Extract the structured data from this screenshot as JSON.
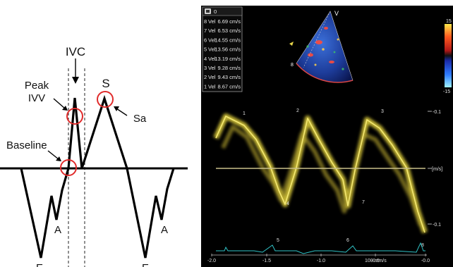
{
  "diagram": {
    "ivc_label": "IVC",
    "peak_label_line1": "Peak",
    "peak_label_line2": "IVV",
    "s_label": "S",
    "sa_label": "Sa",
    "baseline_label": "Baseline",
    "a_label_left": "A",
    "a_label_right": "A",
    "e_label_left": "E",
    "e_label_right": "E"
  },
  "echo": {
    "header_number": "0",
    "header_icon": "monitor-icon",
    "marker_label": "V",
    "sector_depth_label": "8",
    "measurements": [
      {
        "idx": "8",
        "name": "Vel",
        "value": "6.69 cm/s"
      },
      {
        "idx": "7",
        "name": "Vel",
        "value": "6.53 cm/s"
      },
      {
        "idx": "6",
        "name": "Vel",
        "value": "14.55 cm/s"
      },
      {
        "idx": "5",
        "name": "Vel",
        "value": "13.56 cm/s"
      },
      {
        "idx": "4",
        "name": "Vel",
        "value": "13.19 cm/s"
      },
      {
        "idx": "3",
        "name": "Vel",
        "value": "9.28 cm/s"
      },
      {
        "idx": "2",
        "name": "Vel",
        "value": "9.43 cm/s"
      },
      {
        "idx": "1",
        "name": "Vel",
        "value": "8.67 cm/s"
      }
    ],
    "scale_upper": "-0.1",
    "scale_unit": "[m/s]",
    "scale_lower": "-0.1",
    "colorbar_top": "15",
    "colorbar_bottom": "-15",
    "time_ticks": [
      "-2.0",
      "-1.5",
      "-1.0",
      "-0.5",
      "-0.0"
    ],
    "sweep_speed": "100 mm/s",
    "tissue_labels": [
      "1",
      "2",
      "3",
      "4",
      "5",
      "6",
      "7",
      "8"
    ],
    "colors": {
      "background": "#000000",
      "trace": "#e8d84a",
      "baseline": "#c9c08a",
      "ecg": "#2fc3c7",
      "marker_circle": "#e02b2b"
    }
  }
}
